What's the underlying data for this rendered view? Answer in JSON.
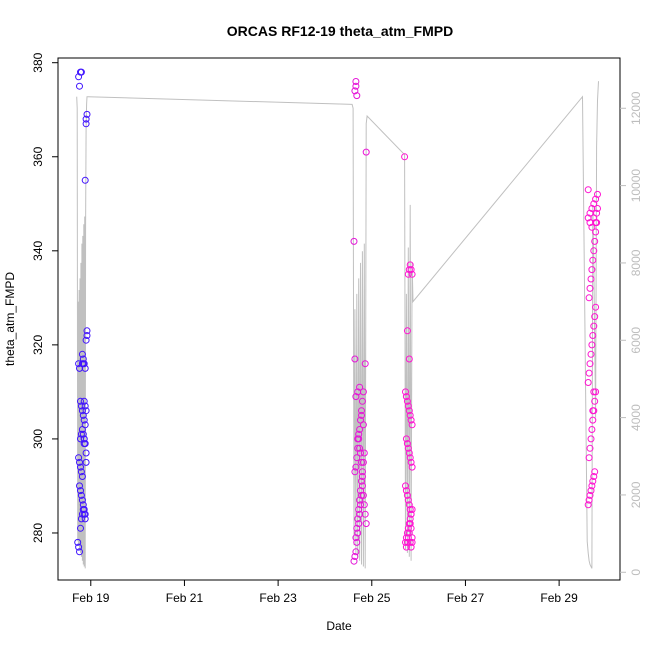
{
  "chart_data": {
    "type": "scatter",
    "title": "ORCAS RF12-19 theta_atm_FMPD",
    "xlabel": "Date",
    "ylabel": "theta_atm_FMPD",
    "grid": false,
    "x_ticks": [
      "Feb 19",
      "Feb 21",
      "Feb 23",
      "Feb 25",
      "Feb 27",
      "Feb 29"
    ],
    "x_tick_days": [
      19,
      21,
      23,
      25,
      27,
      29
    ],
    "xlim_days": [
      18.3,
      30.3
    ],
    "ylim": [
      270,
      381
    ],
    "y_ticks": [
      280,
      300,
      320,
      340,
      360,
      380
    ],
    "y2_ticks": [
      0,
      2000,
      4000,
      6000,
      8000,
      10000,
      12000
    ],
    "y2lim": [
      -200,
      13300
    ],
    "colors": {
      "early": "#3a14ff",
      "late": "#ff14d2",
      "altitude_line": "#c0c0c0",
      "right_axis": "#bdbdbd"
    },
    "series": [
      {
        "values_x": [
          18.72,
          18.74,
          18.76,
          18.78,
          18.8,
          18.82,
          18.74,
          18.76,
          18.78,
          18.8,
          18.82,
          18.84,
          18.86,
          18.88,
          18.76,
          18.78,
          18.8,
          18.82,
          18.84,
          18.86,
          18.88,
          18.78,
          18.8,
          18.82,
          18.84,
          18.86,
          18.88,
          18.74,
          18.76,
          18.82,
          18.84,
          18.86,
          18.88,
          18.78,
          18.8,
          18.82,
          18.84,
          18.86,
          18.88,
          18.86,
          18.88,
          18.9,
          18.9,
          18.92,
          18.92,
          18.88,
          18.9,
          18.92,
          18.9,
          18.86,
          18.9,
          18.9,
          18.76,
          18.74,
          18.78,
          18.8,
          18.82,
          18.84,
          18.86
        ],
        "values_y": [
          278,
          277,
          276,
          281,
          283,
          284,
          296,
          295,
          294,
          293,
          292,
          285,
          284,
          283,
          290,
          289,
          288,
          287,
          286,
          285,
          284,
          300,
          301,
          302,
          301,
          300,
          299,
          316,
          315,
          318,
          317,
          316,
          315,
          308,
          307,
          306,
          305,
          304,
          303,
          308,
          307,
          306,
          321,
          322,
          323,
          355,
          368,
          369,
          367,
          300,
          297,
          295,
          375,
          377,
          378,
          378,
          316,
          316,
          299
        ]
      },
      {
        "values_x": [
          24.62,
          24.64,
          24.66,
          24.68,
          24.7,
          24.72,
          24.74,
          24.76,
          24.78,
          24.8,
          24.64,
          24.66,
          24.68,
          24.7,
          24.72,
          24.74,
          24.76,
          24.78,
          24.8,
          24.82,
          24.66,
          24.68,
          24.7,
          24.72,
          24.74,
          24.76,
          24.78,
          24.8,
          24.82,
          24.84,
          24.66,
          24.7,
          24.74,
          24.78,
          24.82,
          24.86,
          24.64,
          24.62,
          24.64,
          24.66,
          24.88,
          24.7,
          24.72,
          24.74,
          24.76,
          24.78,
          24.8,
          24.82,
          24.84,
          24.86,
          24.88,
          24.66,
          24.68
        ],
        "values_y": [
          274,
          275,
          276,
          278,
          280,
          282,
          284,
          286,
          288,
          290,
          293,
          294,
          296,
          298,
          300,
          302,
          304,
          306,
          308,
          310,
          279,
          281,
          283,
          285,
          287,
          289,
          291,
          293,
          295,
          297,
          309,
          310,
          311,
          305,
          303,
          316,
          317,
          342,
          374,
          376,
          361,
          300,
          301,
          298,
          297,
          295,
          292,
          288,
          286,
          284,
          282,
          375,
          373
        ]
      },
      {
        "values_x": [
          25.72,
          25.74,
          25.76,
          25.78,
          25.8,
          25.82,
          25.84,
          25.86,
          25.74,
          25.76,
          25.78,
          25.8,
          25.82,
          25.84,
          25.86,
          25.74,
          25.76,
          25.78,
          25.8,
          25.82,
          25.84,
          25.86,
          25.72,
          25.74,
          25.76,
          25.78,
          25.8,
          25.82,
          25.84,
          25.86,
          25.72,
          25.74,
          25.76,
          25.78,
          25.8,
          25.82,
          25.84,
          25.7,
          25.78,
          25.8,
          25.82,
          25.84,
          25.86,
          25.76,
          25.8,
          25.86,
          25.84,
          25.82
        ],
        "values_y": [
          278,
          279,
          280,
          281,
          282,
          283,
          284,
          285,
          277,
          278,
          279,
          280,
          278,
          277,
          279,
          300,
          299,
          298,
          297,
          296,
          295,
          294,
          310,
          309,
          308,
          307,
          306,
          305,
          304,
          303,
          290,
          289,
          288,
          287,
          286,
          285,
          284,
          360,
          335,
          336,
          337,
          336,
          335,
          323,
          317,
          278,
          281,
          282
        ]
      },
      {
        "values_x": [
          29.62,
          29.64,
          29.66,
          29.68,
          29.7,
          29.72,
          29.74,
          29.76,
          29.64,
          29.66,
          29.68,
          29.7,
          29.72,
          29.74,
          29.76,
          29.78,
          29.62,
          29.64,
          29.66,
          29.68,
          29.7,
          29.72,
          29.74,
          29.76,
          29.78,
          29.64,
          29.66,
          29.68,
          29.7,
          29.72,
          29.74,
          29.76,
          29.78,
          29.8,
          29.62,
          29.66,
          29.7,
          29.74,
          29.78,
          29.82,
          29.62,
          29.66,
          29.7,
          29.74,
          29.78,
          29.8,
          29.82,
          29.72,
          29.74
        ],
        "values_y": [
          286,
          287,
          288,
          289,
          290,
          291,
          292,
          293,
          296,
          298,
          300,
          302,
          304,
          306,
          308,
          310,
          312,
          314,
          316,
          318,
          320,
          322,
          324,
          326,
          328,
          330,
          332,
          334,
          336,
          338,
          340,
          342,
          344,
          346,
          347,
          348,
          349,
          350,
          351,
          352,
          353,
          346,
          345,
          347,
          346,
          348,
          349,
          306,
          310
        ]
      }
    ],
    "altitude_trace": {
      "x": [
        18.7,
        18.71,
        18.72,
        18.73,
        18.74,
        18.75,
        18.76,
        18.77,
        18.78,
        18.79,
        18.8,
        18.81,
        18.82,
        18.83,
        18.84,
        18.85,
        18.86,
        18.87,
        18.88,
        18.89,
        18.9,
        18.91,
        18.92,
        18.93,
        18.94,
        24.58,
        24.6,
        24.62,
        24.64,
        24.66,
        24.68,
        24.7,
        24.72,
        24.74,
        24.76,
        24.78,
        24.8,
        24.82,
        24.84,
        24.86,
        24.88,
        24.9,
        25.7,
        25.72,
        25.74,
        25.76,
        25.78,
        25.8,
        25.82,
        25.84,
        25.86,
        25.88,
        29.5,
        29.6,
        29.62,
        29.64,
        29.66,
        29.68,
        29.7,
        29.72,
        29.74,
        29.76,
        29.78,
        29.8,
        29.82,
        29.84
      ],
      "y": [
        12300,
        12000,
        800,
        7000,
        700,
        7300,
        600,
        7600,
        500,
        8000,
        400,
        8500,
        300,
        8700,
        200,
        9000,
        150,
        9200,
        100,
        9000,
        11500,
        12100,
        12300,
        12300,
        12300,
        12100,
        12000,
        700,
        6800,
        500,
        7200,
        400,
        7600,
        300,
        8000,
        200,
        8300,
        150,
        8500,
        100,
        11600,
        11800,
        10800,
        600,
        7200,
        500,
        8400,
        400,
        9500,
        300,
        8000,
        7000,
        12300,
        800,
        500,
        300,
        200,
        150,
        100,
        9500,
        8000,
        6000,
        4000,
        11000,
        12200,
        12700
      ],
      "ylim": [
        -200,
        13300
      ]
    }
  }
}
